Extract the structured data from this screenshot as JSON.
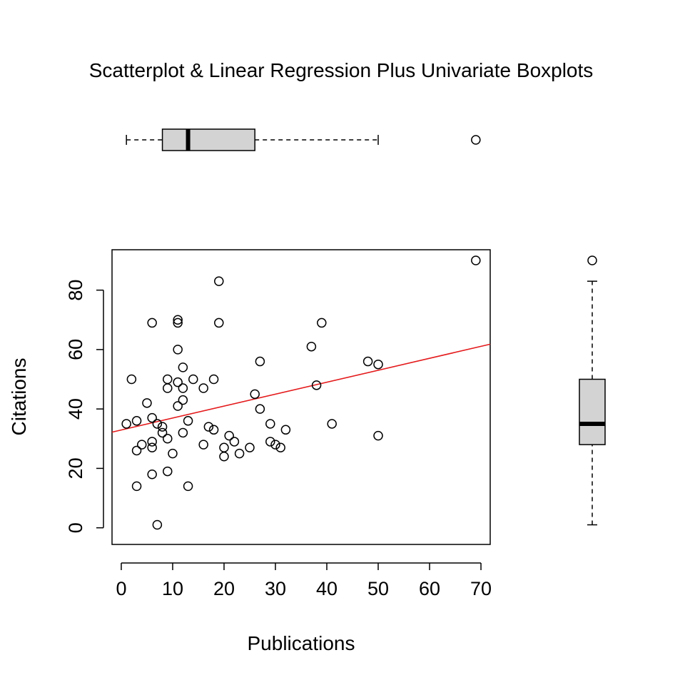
{
  "chart_data": {
    "type": "scatter",
    "title": "Scatterplot & Linear Regression Plus Univariate Boxplots",
    "xlabel": "Publications",
    "ylabel": "Citations",
    "xlim": [
      -1.8,
      71.8
    ],
    "ylim": [
      -5.6,
      93.6
    ],
    "x_ticks": [
      0,
      10,
      20,
      30,
      40,
      50,
      60,
      70
    ],
    "y_ticks": [
      0,
      20,
      40,
      60,
      80
    ],
    "grid": false,
    "legend": "none",
    "colors": {
      "points": "#000000",
      "regression_line": "#e41a1c",
      "box_fill": "#d3d3d3"
    },
    "points": [
      [
        69,
        90
      ],
      [
        19,
        83
      ],
      [
        11,
        70
      ],
      [
        11,
        69
      ],
      [
        6,
        69
      ],
      [
        19,
        69
      ],
      [
        39,
        69
      ],
      [
        37,
        61
      ],
      [
        11,
        60
      ],
      [
        27,
        56
      ],
      [
        48,
        56
      ],
      [
        50,
        55
      ],
      [
        12,
        54
      ],
      [
        2,
        50
      ],
      [
        9,
        50
      ],
      [
        14,
        50
      ],
      [
        18,
        50
      ],
      [
        11,
        49
      ],
      [
        38,
        48
      ],
      [
        9,
        47
      ],
      [
        12,
        47
      ],
      [
        16,
        47
      ],
      [
        26,
        45
      ],
      [
        12,
        43
      ],
      [
        5,
        42
      ],
      [
        11,
        41
      ],
      [
        27,
        40
      ],
      [
        6,
        37
      ],
      [
        3,
        36
      ],
      [
        13,
        36
      ],
      [
        1,
        35
      ],
      [
        7,
        35
      ],
      [
        29,
        35
      ],
      [
        41,
        35
      ],
      [
        8,
        34
      ],
      [
        17,
        34
      ],
      [
        18,
        33
      ],
      [
        32,
        33
      ],
      [
        8,
        32
      ],
      [
        12,
        32
      ],
      [
        21,
        31
      ],
      [
        50,
        31
      ],
      [
        9,
        30
      ],
      [
        6,
        29
      ],
      [
        22,
        29
      ],
      [
        29,
        29
      ],
      [
        4,
        28
      ],
      [
        16,
        28
      ],
      [
        30,
        28
      ],
      [
        6,
        27
      ],
      [
        20,
        27
      ],
      [
        25,
        27
      ],
      [
        31,
        27
      ],
      [
        3,
        26
      ],
      [
        10,
        25
      ],
      [
        23,
        25
      ],
      [
        20,
        24
      ],
      [
        9,
        19
      ],
      [
        6,
        18
      ],
      [
        3,
        14
      ],
      [
        13,
        14
      ],
      [
        7,
        1
      ]
    ],
    "regression_line": {
      "x": [
        -1.8,
        71.8
      ],
      "y": [
        32.2,
        61.8
      ]
    },
    "x_boxplot": {
      "whisker_low": 1,
      "q1": 8,
      "median": 13,
      "q3": 26,
      "whisker_high": 50,
      "outliers": [
        69
      ]
    },
    "y_boxplot": {
      "whisker_low": 1,
      "q1": 28,
      "median": 35,
      "q3": 50,
      "whisker_high": 83,
      "outliers": [
        90
      ]
    }
  }
}
